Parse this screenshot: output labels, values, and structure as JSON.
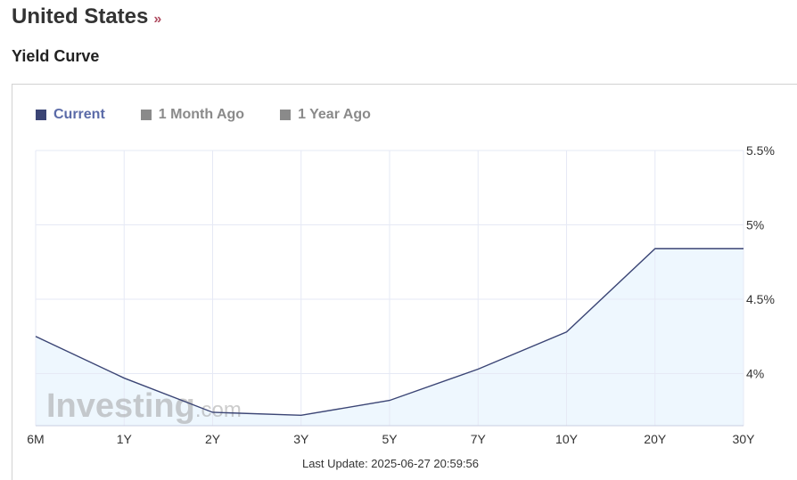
{
  "header": {
    "country": "United States",
    "more_glyph": "»",
    "subtitle": "Yield Curve"
  },
  "legend": [
    {
      "label": "Current",
      "color": "#3b4575",
      "active": true
    },
    {
      "label": "1 Month Ago",
      "color": "#8a8a8a",
      "active": false
    },
    {
      "label": "1 Year Ago",
      "color": "#8a8a8a",
      "active": false
    }
  ],
  "watermark": {
    "main": "Investing",
    "suffix": ".com"
  },
  "chart_data": {
    "type": "area",
    "categories": [
      "6M",
      "1Y",
      "2Y",
      "3Y",
      "5Y",
      "7Y",
      "10Y",
      "20Y",
      "30Y"
    ],
    "series": [
      {
        "name": "Current",
        "values": [
          4.25,
          3.97,
          3.74,
          3.72,
          3.82,
          4.03,
          4.28,
          4.84,
          4.84
        ]
      }
    ],
    "ylim": [
      3.65,
      5.5
    ],
    "yticks": [
      4,
      4.5,
      5,
      5.5
    ],
    "ytick_labels": [
      "4%",
      "4.5%",
      "5%",
      "5.5%"
    ],
    "y_axis_side": "right",
    "grid": true,
    "legend_position": "top-left",
    "colors": {
      "line": "#3b4575",
      "fill": "#eef7fe",
      "grid": "#e6e9f5"
    }
  },
  "footer": {
    "last_update": "Last Update: 2025-06-27 20:59:56"
  }
}
